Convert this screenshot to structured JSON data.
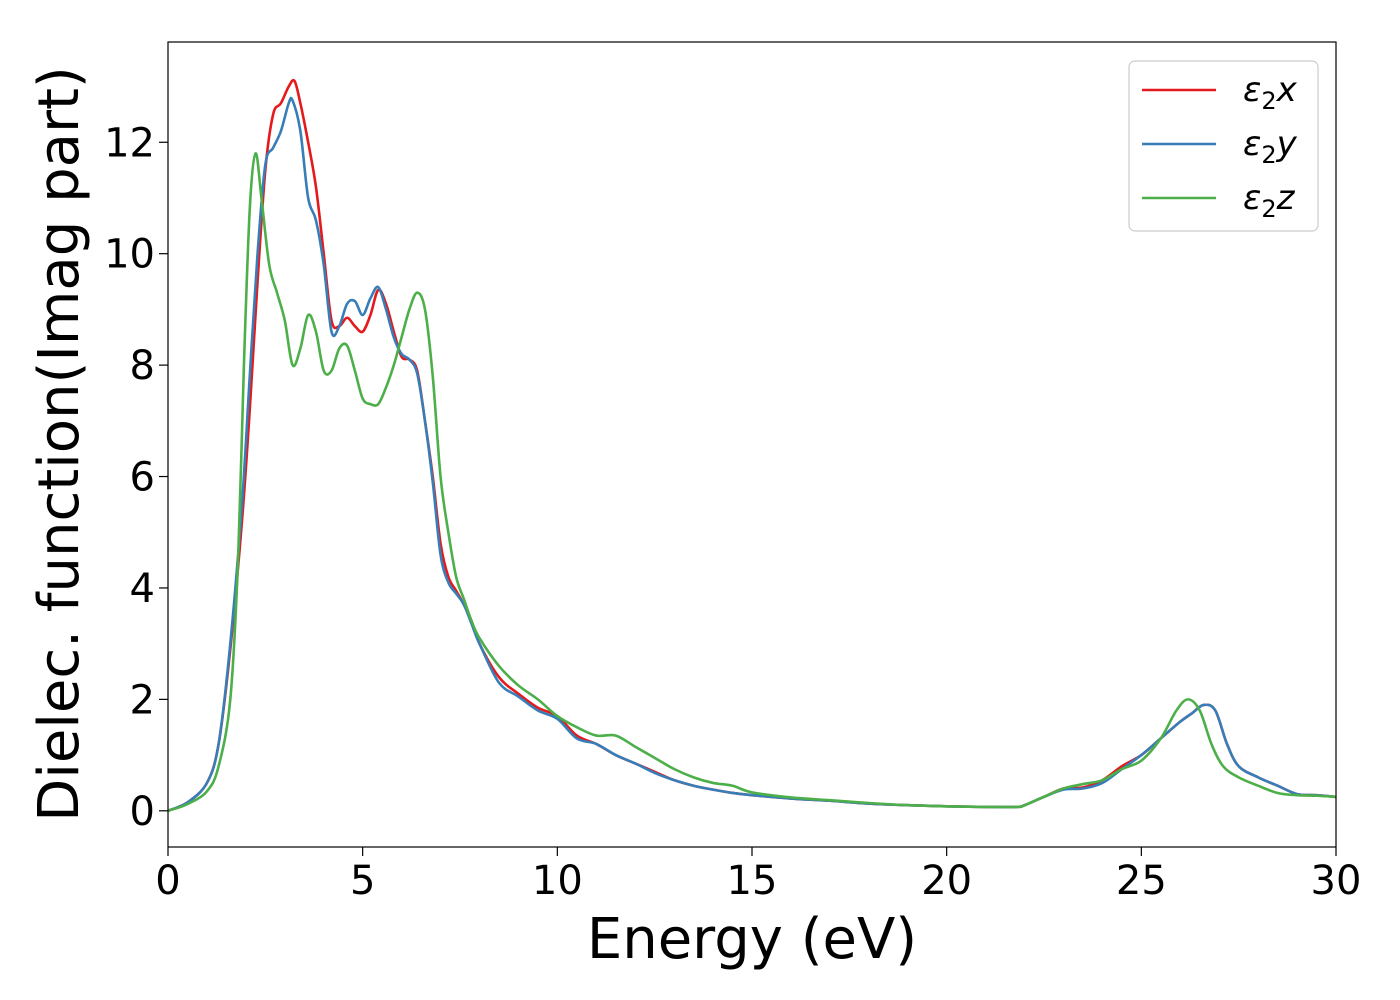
{
  "chart_data": {
    "type": "line",
    "title": "",
    "xlabel": "Energy (eV)",
    "ylabel": "Dielec. function(Imag part)",
    "xlim": [
      0,
      30
    ],
    "ylim": [
      -0.65,
      13.8
    ],
    "xticks": [
      0,
      5,
      10,
      15,
      20,
      25,
      30
    ],
    "yticks": [
      0,
      2,
      4,
      6,
      8,
      10,
      12
    ],
    "legend": "top-right",
    "grid": false,
    "series": [
      {
        "name": "ε2x",
        "name_base": "ε",
        "name_sub": "2",
        "name_tail": "x",
        "color": "#e41a1c",
        "x": [
          0,
          0.5,
          1,
          1.3,
          1.6,
          1.9,
          2.1,
          2.3,
          2.5,
          2.7,
          2.9,
          3.1,
          3.25,
          3.4,
          3.6,
          3.8,
          4.0,
          4.2,
          4.4,
          4.6,
          4.8,
          5.0,
          5.2,
          5.4,
          5.6,
          5.8,
          6.0,
          6.2,
          6.4,
          6.6,
          6.8,
          7.0,
          7.2,
          7.4,
          7.6,
          7.8,
          8.0,
          8.5,
          9.0,
          9.5,
          10.0,
          10.5,
          11.0,
          11.5,
          12.0,
          12.5,
          13.0,
          13.5,
          14.0,
          14.5,
          15.0,
          16.0,
          17.0,
          18.0,
          19.0,
          20.0,
          21.0,
          21.8,
          22.0,
          22.5,
          23.0,
          23.5,
          24.0,
          24.5,
          25.0,
          25.5,
          26.0,
          26.3,
          26.6,
          26.9,
          27.2,
          27.5,
          28.0,
          28.5,
          29.0,
          29.5,
          30.0
        ],
        "values": [
          0,
          0.15,
          0.5,
          1.2,
          2.9,
          5.2,
          7.2,
          9.5,
          11.5,
          12.5,
          12.7,
          13.0,
          13.1,
          12.7,
          12.0,
          11.2,
          10.0,
          8.8,
          8.7,
          8.85,
          8.7,
          8.6,
          8.9,
          9.35,
          9.1,
          8.6,
          8.15,
          8.1,
          7.9,
          7.0,
          6.0,
          4.8,
          4.2,
          3.95,
          3.7,
          3.4,
          3.0,
          2.4,
          2.1,
          1.85,
          1.7,
          1.35,
          1.2,
          1.0,
          0.85,
          0.7,
          0.55,
          0.45,
          0.38,
          0.32,
          0.28,
          0.22,
          0.18,
          0.13,
          0.1,
          0.08,
          0.07,
          0.07,
          0.1,
          0.25,
          0.4,
          0.42,
          0.55,
          0.8,
          1.0,
          1.3,
          1.6,
          1.75,
          1.9,
          1.8,
          1.2,
          0.8,
          0.6,
          0.45,
          0.3,
          0.28,
          0.25
        ]
      },
      {
        "name": "ε2y",
        "name_base": "ε",
        "name_sub": "2",
        "name_tail": "y",
        "color": "#377eb8",
        "x": [
          0,
          0.5,
          1,
          1.3,
          1.6,
          1.9,
          2.1,
          2.3,
          2.5,
          2.7,
          2.9,
          3.1,
          3.2,
          3.4,
          3.6,
          3.8,
          4.0,
          4.2,
          4.4,
          4.6,
          4.8,
          5.0,
          5.2,
          5.4,
          5.6,
          5.8,
          6.0,
          6.2,
          6.4,
          6.6,
          6.8,
          7.0,
          7.2,
          7.4,
          7.6,
          7.8,
          8.0,
          8.5,
          9.0,
          9.5,
          10.0,
          10.5,
          11.0,
          11.5,
          12.0,
          12.5,
          13.0,
          13.5,
          14.0,
          14.5,
          15.0,
          16.0,
          17.0,
          18.0,
          19.0,
          20.0,
          21.0,
          21.8,
          22.0,
          22.5,
          23.0,
          23.5,
          24.0,
          24.5,
          25.0,
          25.5,
          26.0,
          26.3,
          26.6,
          26.9,
          27.2,
          27.5,
          28.0,
          28.5,
          29.0,
          29.5,
          30.0
        ],
        "values": [
          0,
          0.15,
          0.5,
          1.2,
          3.0,
          5.5,
          7.8,
          10.0,
          11.6,
          11.9,
          12.2,
          12.7,
          12.75,
          12.2,
          11.0,
          10.6,
          9.8,
          8.6,
          8.7,
          9.1,
          9.15,
          8.9,
          9.2,
          9.4,
          9.0,
          8.5,
          8.2,
          8.1,
          7.85,
          7.0,
          5.9,
          4.6,
          4.1,
          3.9,
          3.7,
          3.35,
          3.0,
          2.3,
          2.05,
          1.8,
          1.65,
          1.3,
          1.2,
          1.0,
          0.85,
          0.68,
          0.55,
          0.45,
          0.38,
          0.32,
          0.28,
          0.22,
          0.18,
          0.13,
          0.1,
          0.08,
          0.07,
          0.07,
          0.1,
          0.25,
          0.38,
          0.4,
          0.5,
          0.75,
          1.0,
          1.3,
          1.6,
          1.75,
          1.9,
          1.8,
          1.2,
          0.8,
          0.6,
          0.45,
          0.3,
          0.28,
          0.25
        ]
      },
      {
        "name": "ε2z",
        "name_base": "ε",
        "name_sub": "2",
        "name_tail": "z",
        "color": "#4daf4a",
        "x": [
          0,
          0.5,
          1,
          1.3,
          1.6,
          1.8,
          1.95,
          2.1,
          2.25,
          2.4,
          2.6,
          2.8,
          3.0,
          3.2,
          3.4,
          3.6,
          3.8,
          4.0,
          4.2,
          4.4,
          4.6,
          4.8,
          5.0,
          5.2,
          5.4,
          5.6,
          5.8,
          6.0,
          6.2,
          6.4,
          6.6,
          6.8,
          7.0,
          7.2,
          7.4,
          7.6,
          7.8,
          8.0,
          8.5,
          9.0,
          9.5,
          10.0,
          10.5,
          11.0,
          11.5,
          12.0,
          12.5,
          13.0,
          13.5,
          14.0,
          14.5,
          15.0,
          16.0,
          17.0,
          18.0,
          19.0,
          20.0,
          21.0,
          21.8,
          22.0,
          22.5,
          23.0,
          23.5,
          24.0,
          24.5,
          25.0,
          25.5,
          25.9,
          26.2,
          26.5,
          26.8,
          27.1,
          27.5,
          28.0,
          28.5,
          29.0,
          29.5,
          30.0
        ],
        "values": [
          0,
          0.12,
          0.35,
          0.8,
          2.0,
          4.5,
          8.0,
          10.8,
          11.8,
          11.0,
          9.8,
          9.3,
          8.8,
          8.0,
          8.3,
          8.9,
          8.6,
          7.9,
          7.9,
          8.3,
          8.35,
          7.9,
          7.4,
          7.3,
          7.3,
          7.6,
          8.0,
          8.5,
          9.0,
          9.3,
          9.0,
          7.8,
          6.0,
          5.0,
          4.2,
          3.8,
          3.4,
          3.1,
          2.6,
          2.25,
          2.0,
          1.7,
          1.5,
          1.35,
          1.35,
          1.15,
          0.95,
          0.75,
          0.6,
          0.5,
          0.45,
          0.33,
          0.24,
          0.19,
          0.14,
          0.1,
          0.08,
          0.07,
          0.07,
          0.1,
          0.25,
          0.4,
          0.48,
          0.55,
          0.75,
          0.9,
          1.3,
          1.8,
          2.0,
          1.8,
          1.2,
          0.8,
          0.6,
          0.45,
          0.32,
          0.28,
          0.27,
          0.25
        ]
      }
    ]
  }
}
